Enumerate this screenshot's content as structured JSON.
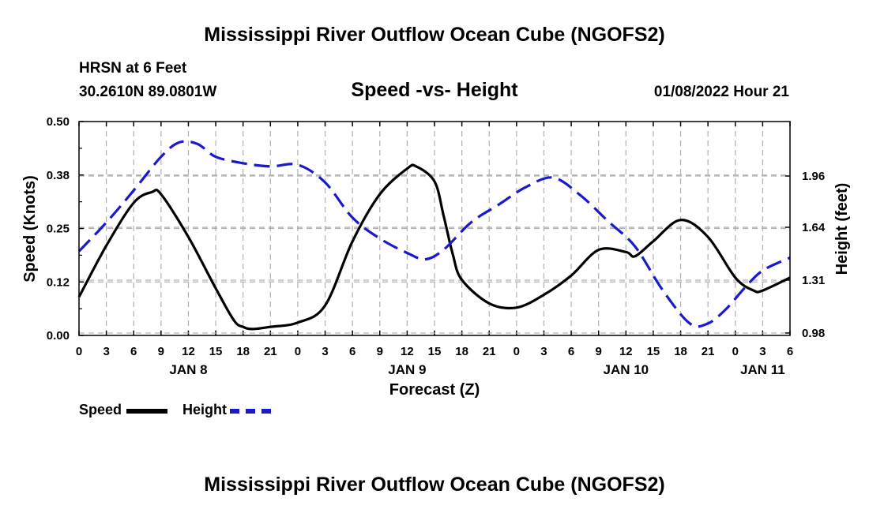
{
  "header": {
    "title": "Mississippi River Outflow Ocean Cube (NGOFS2)",
    "station": "HRSN at 6 Feet",
    "coords": "30.2610N  89.0801W",
    "date": "01/08/2022 Hour 21",
    "footer_title": "Mississippi River Outflow Ocean Cube (NGOFS2)"
  },
  "legend": {
    "speed_label": "Speed",
    "height_label": "Height"
  },
  "chart_data": {
    "type": "line",
    "title": "Speed -vs- Height",
    "xlabel": "Forecast (Z)",
    "ylabel": "Speed (Knots)",
    "y2label": "Height (feet)",
    "x_hours_range": [
      0,
      78
    ],
    "x_tick_labels": [
      "0",
      "3",
      "6",
      "9",
      "12",
      "15",
      "18",
      "21",
      "0",
      "3",
      "6",
      "9",
      "12",
      "15",
      "18",
      "21",
      "0",
      "3",
      "6",
      "9",
      "12",
      "15",
      "18",
      "21",
      "0",
      "3",
      "6"
    ],
    "day_labels": [
      {
        "label": "JAN 8",
        "hour": 12
      },
      {
        "label": "JAN 9",
        "hour": 36
      },
      {
        "label": "JAN 10",
        "hour": 60
      },
      {
        "label": "JAN 11",
        "hour": 75
      }
    ],
    "ylim": [
      0,
      0.5
    ],
    "y_ticks": [
      "0.00",
      "0.12",
      "0.25",
      "0.38",
      "0.50"
    ],
    "y2lim": [
      0.965,
      2.3
    ],
    "y2_ticks": [
      "0.98",
      "1.31",
      "1.64",
      "1.96"
    ],
    "colors": {
      "speed": "#000000",
      "height": "#1a1acc"
    },
    "series": [
      {
        "name": "Speed",
        "axis": "left",
        "x": [
          0,
          3,
          6,
          8,
          9,
          12,
          15,
          17,
          18,
          19,
          21,
          24,
          27,
          30,
          33,
          36,
          37,
          39,
          40,
          41,
          42,
          45,
          48,
          51,
          54,
          57,
          60,
          61,
          63,
          66,
          69,
          72,
          74,
          75,
          78
        ],
        "values": [
          0.09,
          0.21,
          0.31,
          0.335,
          0.33,
          0.23,
          0.11,
          0.035,
          0.02,
          0.015,
          0.02,
          0.03,
          0.07,
          0.22,
          0.33,
          0.39,
          0.395,
          0.36,
          0.28,
          0.19,
          0.13,
          0.075,
          0.065,
          0.095,
          0.14,
          0.2,
          0.195,
          0.185,
          0.22,
          0.27,
          0.23,
          0.135,
          0.105,
          0.105,
          0.135
        ]
      },
      {
        "name": "Height",
        "axis": "right",
        "x": [
          0,
          3,
          6,
          9,
          11,
          13,
          15,
          18,
          21,
          24,
          27,
          30,
          33,
          36,
          38,
          40,
          43,
          46,
          49,
          52,
          55,
          58,
          61,
          64,
          67,
          69,
          71,
          73,
          75,
          78
        ],
        "values": [
          1.49,
          1.67,
          1.87,
          2.08,
          2.17,
          2.16,
          2.08,
          2.04,
          2.02,
          2.03,
          1.92,
          1.7,
          1.57,
          1.48,
          1.44,
          1.5,
          1.67,
          1.78,
          1.89,
          1.95,
          1.84,
          1.68,
          1.52,
          1.25,
          1.04,
          1.04,
          1.13,
          1.26,
          1.37,
          1.45
        ]
      }
    ]
  }
}
